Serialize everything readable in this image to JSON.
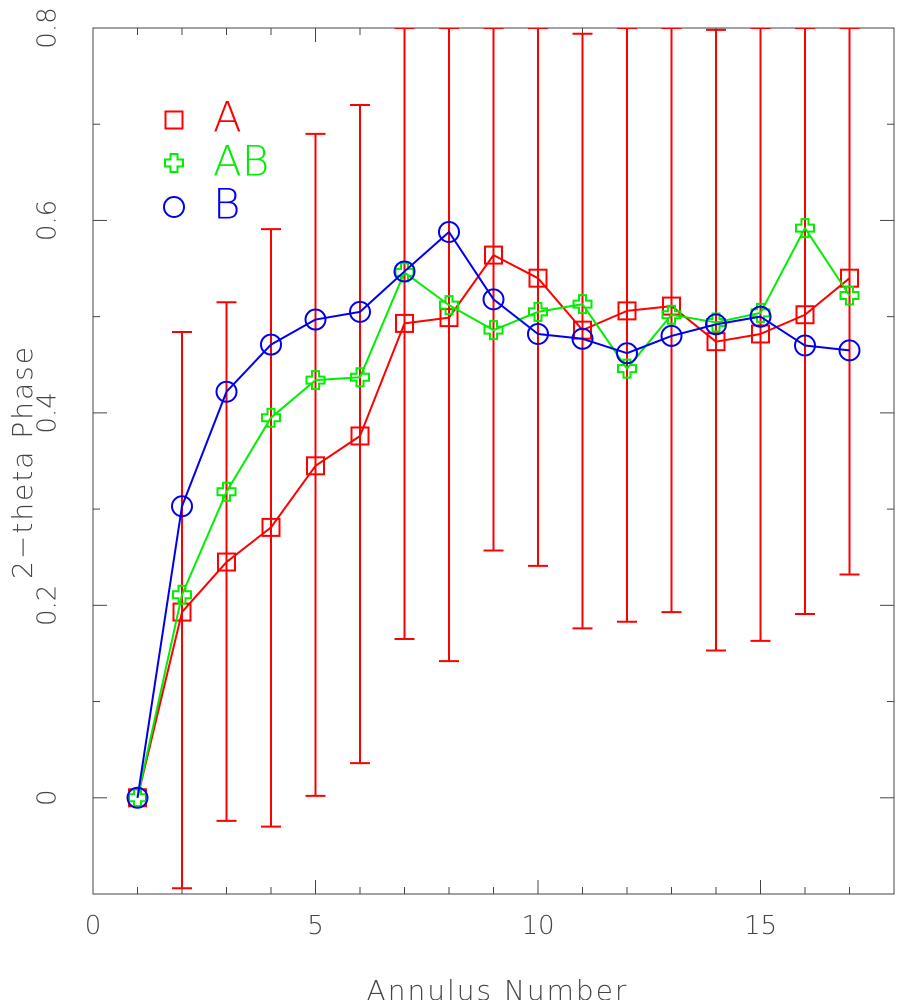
{
  "chart_data": {
    "type": "line",
    "title": "",
    "xlabel": "Annulus Number",
    "ylabel": "2−theta Phase",
    "xlim": [
      0,
      18
    ],
    "ylim": [
      -0.1,
      0.8
    ],
    "x_ticks": [
      0,
      5,
      10,
      15
    ],
    "x_tick_labels": [
      "0",
      "5",
      "10",
      "15"
    ],
    "y_ticks": [
      0,
      0.2,
      0.4,
      0.6,
      0.8
    ],
    "y_tick_labels": [
      "0",
      "0.2",
      "0.4",
      "0.6",
      "0.8"
    ],
    "x_minor_ticks": [
      1,
      2,
      3,
      4,
      6,
      7,
      8,
      9,
      11,
      12,
      13,
      14,
      16,
      17
    ],
    "y_minor_ticks": [
      -0.1,
      0.1,
      0.3,
      0.5,
      0.7
    ],
    "grid": false,
    "legend_position": "top-left",
    "series": [
      {
        "name": "A",
        "color": "#ff0000",
        "marker": "square",
        "x": [
          1,
          2,
          3,
          4,
          5,
          6,
          7,
          8,
          9,
          10,
          11,
          12,
          13,
          14,
          15,
          16,
          17
        ],
        "y": [
          0.0,
          0.193,
          0.245,
          0.281,
          0.345,
          0.376,
          0.493,
          0.499,
          0.564,
          0.54,
          0.486,
          0.506,
          0.511,
          0.474,
          0.482,
          0.502,
          0.54
        ],
        "error_low": [
          null,
          -0.094,
          -0.024,
          -0.03,
          0.002,
          0.036,
          0.165,
          0.142,
          0.257,
          0.241,
          0.176,
          0.183,
          0.193,
          0.153,
          0.163,
          0.191,
          0.232
        ],
        "error_high": [
          null,
          0.484,
          0.515,
          0.591,
          0.69,
          0.72,
          0.8,
          0.8,
          0.8,
          0.8,
          0.794,
          0.8,
          0.8,
          0.798,
          0.8,
          0.8,
          0.8
        ]
      },
      {
        "name": "AB",
        "color": "#00ee00",
        "marker": "plus",
        "x": [
          1,
          2,
          3,
          4,
          5,
          6,
          7,
          8,
          9,
          10,
          11,
          12,
          13,
          14,
          15,
          16,
          17
        ],
        "y": [
          0.0,
          0.211,
          0.318,
          0.395,
          0.434,
          0.437,
          0.546,
          0.512,
          0.486,
          0.505,
          0.513,
          0.446,
          0.502,
          0.494,
          0.504,
          0.592,
          0.522
        ]
      },
      {
        "name": "B",
        "color": "#0000ee",
        "marker": "circle",
        "x": [
          1,
          2,
          3,
          4,
          5,
          6,
          7,
          8,
          9,
          10,
          11,
          12,
          13,
          14,
          15,
          16,
          17
        ],
        "y": [
          0.0,
          0.303,
          0.422,
          0.471,
          0.497,
          0.505,
          0.547,
          0.588,
          0.518,
          0.482,
          0.477,
          0.462,
          0.48,
          0.492,
          0.5,
          0.47,
          0.465
        ]
      }
    ]
  }
}
